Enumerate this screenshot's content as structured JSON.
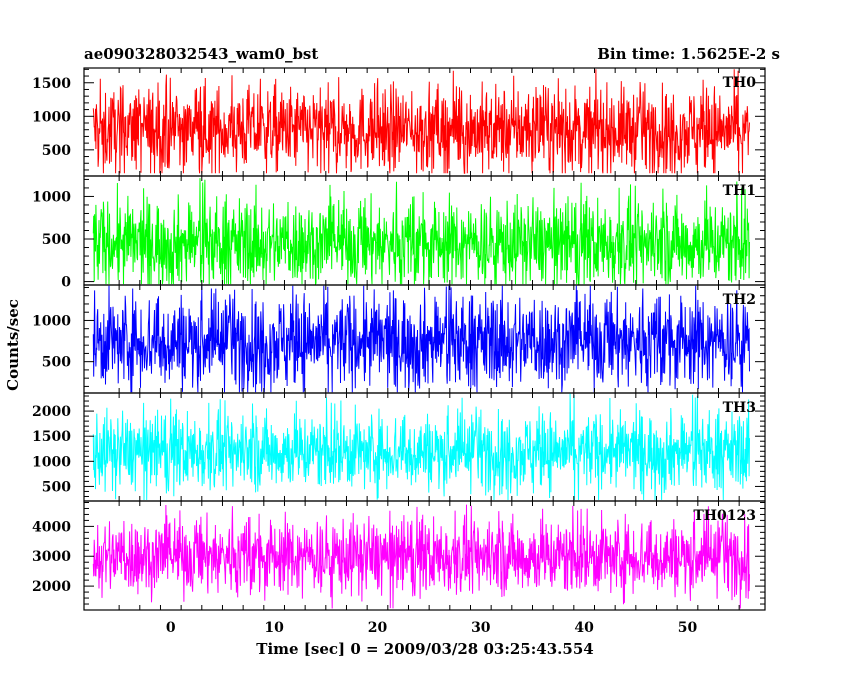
{
  "header": {
    "left_title": "ae090328032543_wam0_bst",
    "right_title": "Bin time: 1.5625E-2 s"
  },
  "chart_data": {
    "type": "line",
    "xlabel": "Time [sec] 0 = 2009/03/28 03:25:43.554",
    "ylabel": "Counts/sec",
    "xlim": [
      -8.4,
      57.5
    ],
    "x_ticks": [
      0,
      10,
      20,
      30,
      40,
      50
    ],
    "x_tick_labels": [
      "0",
      "10",
      "20",
      "30",
      "40",
      "50"
    ],
    "data_x_range": [
      -7.5,
      56
    ],
    "bin_time_s": 0.015625,
    "grid": false,
    "panels": [
      {
        "name": "TH0",
        "color": "#ff0000",
        "ylim": [
          110,
          1720
        ],
        "y_ticks": [
          500,
          1000,
          1500
        ],
        "y_tick_labels": [
          "500",
          "1000",
          "1500"
        ],
        "typical_range": [
          300,
          1300
        ],
        "mean": 800,
        "extreme_range": [
          150,
          1700
        ]
      },
      {
        "name": "TH1",
        "color": "#00ff00",
        "ylim": [
          -40,
          1240
        ],
        "y_ticks": [
          0,
          500,
          1000
        ],
        "y_tick_labels": [
          "0",
          "500",
          "1000"
        ],
        "typical_range": [
          100,
          900
        ],
        "mean": 450,
        "extreme_range": [
          -30,
          1230
        ]
      },
      {
        "name": "TH2",
        "color": "#0000ff",
        "ylim": [
          120,
          1430
        ],
        "y_ticks": [
          500,
          1000
        ],
        "y_tick_labels": [
          "500",
          "1000"
        ],
        "typical_range": [
          300,
          1200
        ],
        "mean": 750,
        "extreme_range": [
          130,
          1420
        ]
      },
      {
        "name": "TH3",
        "color": "#00ffff",
        "ylim": [
          210,
          2360
        ],
        "y_ticks": [
          500,
          1000,
          1500,
          2000
        ],
        "y_tick_labels": [
          "500",
          "1000",
          "1500",
          "2000"
        ],
        "typical_range": [
          600,
          1800
        ],
        "mean": 1200,
        "extreme_range": [
          230,
          2350
        ]
      },
      {
        "name": "TH0123",
        "color": "#ff00ff",
        "ylim": [
          1200,
          4850
        ],
        "y_ticks": [
          2000,
          3000,
          4000
        ],
        "y_tick_labels": [
          "2000",
          "3000",
          "4000"
        ],
        "typical_range": [
          2000,
          4000
        ],
        "mean": 3000,
        "extreme_range": [
          1250,
          4800
        ]
      }
    ]
  }
}
